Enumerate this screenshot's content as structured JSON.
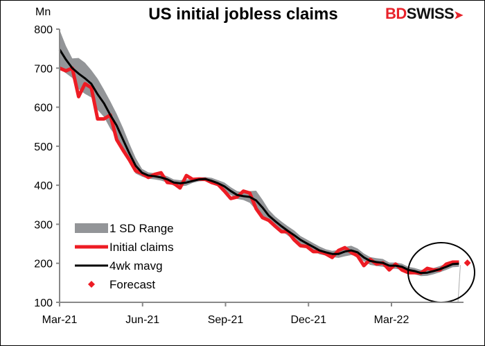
{
  "chart_data": {
    "type": "line",
    "title": "US initial jobless claims",
    "ylabel": "Mn",
    "ylim": [
      100,
      800
    ],
    "yticks": [
      "100",
      "200",
      "300",
      "400",
      "500",
      "600",
      "700",
      "800"
    ],
    "xticks": [
      "Mar-21",
      "Jun-21",
      "Sep-21",
      "Dec-21",
      "Mar-22"
    ],
    "x_start": "2021-03-06",
    "x_frequency": "weekly",
    "grid": false,
    "legend_placement": "bottom-left",
    "colors": {
      "band": "#939598",
      "claims": "#ed1c24",
      "mavg": "#000000",
      "forecast": "#ed1c24"
    },
    "series": [
      {
        "name": "Initial claims",
        "values": [
          700,
          693,
          700,
          627,
          660,
          650,
          570,
          570,
          580,
          517,
          490,
          465,
          437,
          430,
          420,
          428,
          432,
          407,
          405,
          393,
          425,
          415,
          416,
          415,
          407,
          402,
          385,
          366,
          370,
          385,
          380,
          340,
          317,
          310,
          295,
          281,
          281,
          260,
          245,
          243,
          230,
          230,
          224,
          215,
          233,
          240,
          228,
          219,
          194,
          210,
          198,
          201,
          183,
          198,
          183,
          176,
          176,
          175,
          187,
          183,
          183,
          198,
          203,
          203
        ]
      },
      {
        "name": "4wk mavg",
        "values": [
          748,
          722,
          700,
          686,
          674,
          660,
          633,
          610,
          580,
          553,
          517,
          482,
          450,
          432,
          425,
          423,
          420,
          415,
          407,
          405,
          407,
          411,
          415,
          416,
          411,
          405,
          397,
          385,
          375,
          372,
          370,
          361,
          343,
          322,
          308,
          295,
          283,
          272,
          260,
          251,
          242,
          233,
          228,
          224,
          224,
          230,
          233,
          228,
          215,
          206,
          203,
          201,
          194,
          194,
          191,
          183,
          180,
          175,
          176,
          180,
          185,
          191,
          198,
          199
        ]
      },
      {
        "name": "1 SD Range",
        "sd": [
          50,
          35,
          25,
          40,
          40,
          35,
          40,
          35,
          35,
          30,
          30,
          25,
          20,
          10,
          8,
          8,
          8,
          8,
          8,
          8,
          8,
          5,
          5,
          5,
          8,
          8,
          10,
          10,
          10,
          10,
          15,
          25,
          20,
          15,
          12,
          12,
          12,
          12,
          10,
          10,
          10,
          10,
          8,
          8,
          10,
          12,
          12,
          10,
          10,
          10,
          10,
          10,
          8,
          8,
          8,
          8,
          8,
          8,
          8,
          8,
          8,
          8,
          8,
          8
        ]
      },
      {
        "name": "Forecast",
        "values": [
          201
        ]
      }
    ],
    "legend": [
      "1 SD Range",
      "Initial claims",
      "4wk mavg",
      "Forecast"
    ]
  },
  "logo": {
    "part1": "BD",
    "part2": "SWISS"
  }
}
